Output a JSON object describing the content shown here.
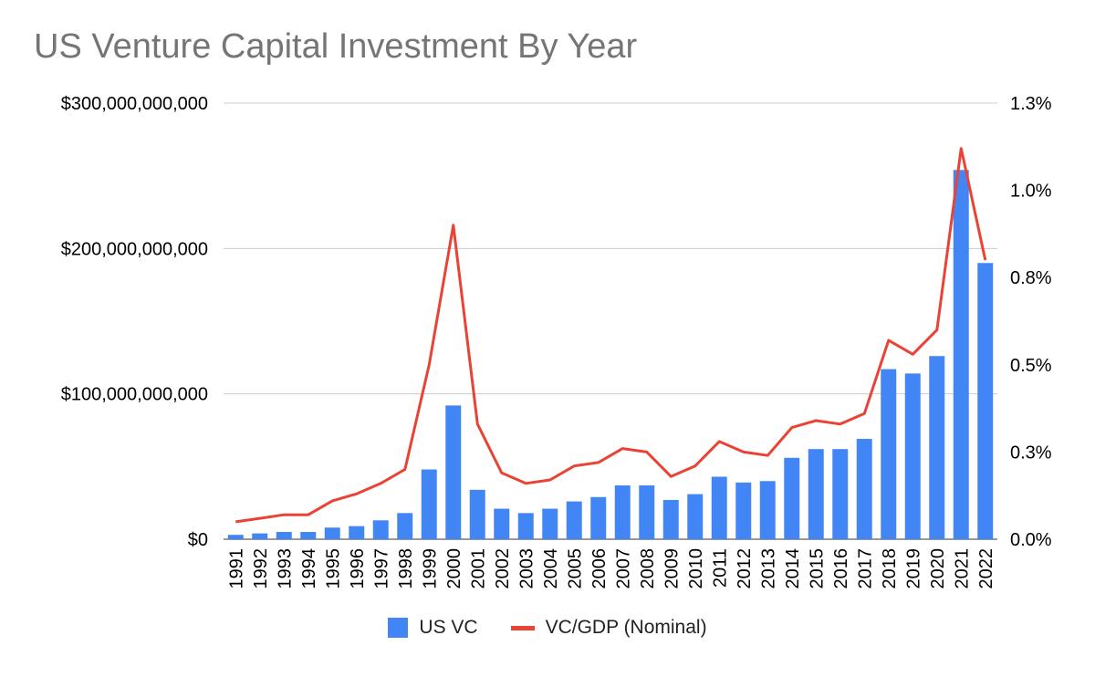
{
  "colors": {
    "bar": "#4285f4",
    "line": "#ea4335",
    "grid": "#cccccc",
    "title": "#757575"
  },
  "chart_data": {
    "type": "bar",
    "title": "US Venture Capital Investment By Year",
    "xlabel": "",
    "ylabel": "",
    "categories": [
      "1991",
      "1992",
      "1993",
      "1994",
      "1995",
      "1996",
      "1997",
      "1998",
      "1999",
      "2000",
      "2001",
      "2002",
      "2003",
      "2004",
      "2005",
      "2006",
      "2007",
      "2008",
      "2009",
      "2010",
      "2011",
      "2012",
      "2013",
      "2014",
      "2015",
      "2016",
      "2017",
      "2018",
      "2019",
      "2020",
      "2021",
      "2022"
    ],
    "ylim": [
      0,
      300000000000
    ],
    "y2lim": [
      0,
      1.25
    ],
    "yticks": [
      0,
      100000000000,
      200000000000,
      300000000000
    ],
    "ytick_labels": [
      "$0",
      "$100,000,000,000",
      "$200,000,000,000",
      "$300,000,000,000"
    ],
    "y2ticks": [
      0,
      0.25,
      0.5,
      0.75,
      1.0,
      1.25
    ],
    "y2tick_labels": [
      "0.0%",
      "0.3%",
      "0.5%",
      "0.8%",
      "1.0%",
      "1.3%"
    ],
    "grid": true,
    "legend_position": "bottom",
    "series": [
      {
        "name": "US VC",
        "type": "bar",
        "axis": "left",
        "values": [
          3000000000,
          4000000000,
          5000000000,
          5000000000,
          8000000000,
          9000000000,
          13000000000,
          18000000000,
          48000000000,
          92000000000,
          34000000000,
          21000000000,
          18000000000,
          21000000000,
          26000000000,
          29000000000,
          37000000000,
          37000000000,
          27000000000,
          31000000000,
          43000000000,
          39000000000,
          40000000000,
          56000000000,
          62000000000,
          62000000000,
          69000000000,
          117000000000,
          114000000000,
          126000000000,
          254000000000,
          190000000000
        ]
      },
      {
        "name": "VC/GDP (Nominal)",
        "type": "line",
        "axis": "right",
        "values": [
          0.05,
          0.06,
          0.07,
          0.07,
          0.11,
          0.13,
          0.16,
          0.2,
          0.5,
          0.9,
          0.33,
          0.19,
          0.16,
          0.17,
          0.21,
          0.22,
          0.26,
          0.25,
          0.18,
          0.21,
          0.28,
          0.25,
          0.24,
          0.32,
          0.34,
          0.33,
          0.36,
          0.57,
          0.53,
          0.6,
          1.12,
          0.8
        ]
      }
    ]
  }
}
